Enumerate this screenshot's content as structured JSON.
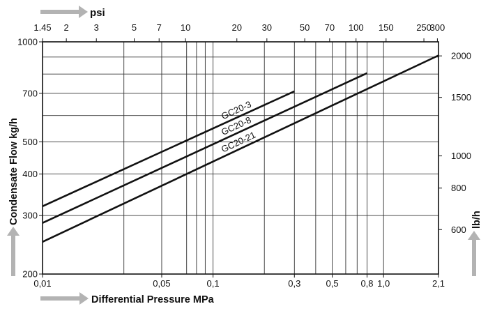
{
  "chart_data": {
    "type": "line",
    "scale": "log-log",
    "grid": true,
    "xlabel": "Differential Pressure MPa",
    "ylabel": "Condensate Flow kg/h",
    "x2label": "psi",
    "y2label": "lb/h",
    "xlim": [
      0.01,
      2.1
    ],
    "ylim": [
      200,
      1000
    ],
    "x_ticks": [
      {
        "v": 0.01,
        "label": "0,01"
      },
      {
        "v": 0.05,
        "label": "0,05"
      },
      {
        "v": 0.1,
        "label": "0,1"
      },
      {
        "v": 0.3,
        "label": "0,3"
      },
      {
        "v": 0.5,
        "label": "0,5"
      },
      {
        "v": 0.8,
        "label": "0,8"
      },
      {
        "v": 1.0,
        "label": "1,0"
      },
      {
        "v": 2.1,
        "label": "2,1"
      }
    ],
    "x_grid_extra": [
      0.03,
      0.07,
      0.08,
      0.09,
      0.2,
      0.4,
      0.6,
      0.7
    ],
    "psi_ticks": [
      {
        "v": 1.45,
        "label": "1.45"
      },
      {
        "v": 2,
        "label": "2"
      },
      {
        "v": 3,
        "label": "3"
      },
      {
        "v": 5,
        "label": "5"
      },
      {
        "v": 7,
        "label": "7"
      },
      {
        "v": 10,
        "label": "10"
      },
      {
        "v": 20,
        "label": "20"
      },
      {
        "v": 30,
        "label": "30"
      },
      {
        "v": 50,
        "label": "50"
      },
      {
        "v": 70,
        "label": "70"
      },
      {
        "v": 100,
        "label": "100"
      },
      {
        "v": 150,
        "label": "150"
      },
      {
        "v": 250,
        "label": "250"
      },
      {
        "v": 300,
        "label": "300"
      }
    ],
    "y_ticks": [
      {
        "v": 200,
        "label": "200"
      },
      {
        "v": 300,
        "label": "300"
      },
      {
        "v": 400,
        "label": "400"
      },
      {
        "v": 500,
        "label": "500"
      },
      {
        "v": 700,
        "label": "700"
      },
      {
        "v": 1000,
        "label": "1000"
      }
    ],
    "y_grid_extra": [
      600,
      800,
      900
    ],
    "lbh_ticks": [
      {
        "v": 600,
        "label": "600"
      },
      {
        "v": 800,
        "label": "800"
      },
      {
        "v": 1000,
        "label": "1000"
      },
      {
        "v": 1500,
        "label": "1500"
      },
      {
        "v": 2000,
        "label": "2000"
      }
    ],
    "series": [
      {
        "name": "GC20-3",
        "x": [
          0.01,
          0.3
        ],
        "y": [
          320,
          710
        ]
      },
      {
        "name": "GC20-8",
        "x": [
          0.01,
          0.8
        ],
        "y": [
          285,
          805
        ]
      },
      {
        "name": "GC20-21",
        "x": [
          0.01,
          2.1
        ],
        "y": [
          250,
          910
        ]
      }
    ]
  }
}
